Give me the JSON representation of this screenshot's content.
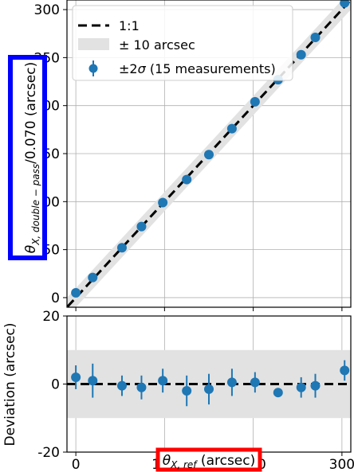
{
  "chart_data": [
    {
      "type": "scatter",
      "xlim": [
        -10,
        310
      ],
      "ylim": [
        -10,
        310
      ],
      "yticks": [
        0,
        50,
        100,
        150,
        200,
        250,
        300
      ],
      "ylabel_main": "θ",
      "ylabel_sub": "X, double − pass",
      "ylabel_rest": "/0.070 (arcsec)",
      "grid": true,
      "legend_position": "top-left",
      "legend": [
        {
          "label": "1:1",
          "style": "dashed-line"
        },
        {
          "label": "± 10 arcsec",
          "style": "band"
        },
        {
          "label_main": "±2",
          "label_sigma": "σ",
          "label_rest": " (15 measurements)",
          "style": "errorbar-marker"
        }
      ],
      "band_halfwidth": 10,
      "x": [
        0,
        19,
        52,
        74,
        98,
        125,
        150,
        176,
        202,
        228,
        254,
        270,
        303
      ],
      "y": [
        5,
        21,
        52,
        74,
        99,
        123,
        149,
        176,
        204,
        227,
        253,
        271,
        307
      ],
      "colors": {
        "marker": "#1f77b4",
        "band": "#e2e2e2",
        "line": "#000000",
        "ylabel_box": "#0000ff"
      }
    },
    {
      "type": "scatter",
      "xlim": [
        -10,
        310
      ],
      "ylim": [
        -20,
        20
      ],
      "xticks": [
        0,
        100,
        200,
        300
      ],
      "yticks": [
        -20,
        0,
        20
      ],
      "ylabel": "Deviation (arcsec)",
      "xlabel_main": "θ",
      "xlabel_sub": "X, ref",
      "xlabel_rest": " (arcsec)",
      "grid": true,
      "band": [
        -10,
        10
      ],
      "x": [
        0,
        19,
        52,
        74,
        98,
        125,
        150,
        176,
        202,
        228,
        254,
        270,
        303
      ],
      "y": [
        2.0,
        1.0,
        -0.5,
        -1.0,
        1.0,
        -2.0,
        -1.5,
        0.5,
        0.5,
        -2.5,
        -1.0,
        -0.5,
        4.0
      ],
      "yerr": [
        3.5,
        5.0,
        3.0,
        3.5,
        3.5,
        4.5,
        4.5,
        4.0,
        3.0,
        0.5,
        3.0,
        3.5,
        3.0
      ],
      "colors": {
        "marker": "#1f77b4",
        "band": "#e2e2e2",
        "line": "#000000",
        "xlabel_box": "#ff0000"
      }
    }
  ]
}
